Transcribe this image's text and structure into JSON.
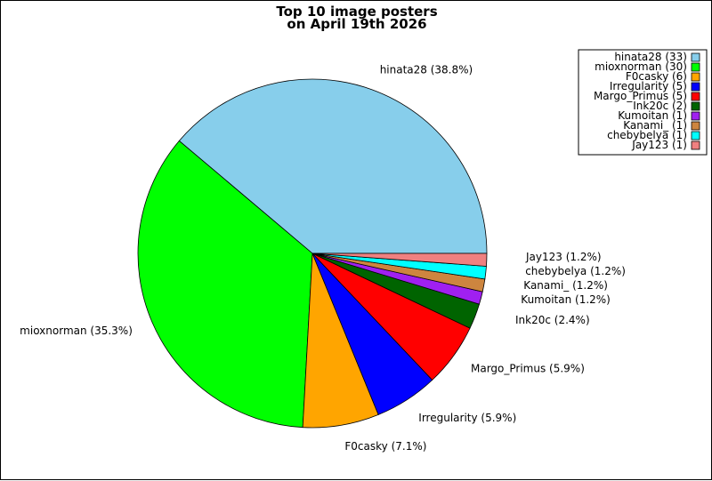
{
  "chart_data": {
    "type": "pie",
    "title_line1": "Top 10 image posters",
    "title_line2": "on April 19th 2026",
    "slices": [
      {
        "name": "hinata28",
        "value": 33,
        "legend": "hinata28 (33)",
        "label": "hinata28 (38.8%)",
        "color": "#87CEEB"
      },
      {
        "name": "mioxnorman",
        "value": 30,
        "legend": "mioxnorman (30)",
        "label": "mioxnorman (35.3%)",
        "color": "#00FF00"
      },
      {
        "name": "F0casky",
        "value": 6,
        "legend": "F0casky (6)",
        "label": "F0casky (7.1%)",
        "color": "#FFA500"
      },
      {
        "name": "Irregularity",
        "value": 5,
        "legend": "Irregularity (5)",
        "label": "Irregularity (5.9%)",
        "color": "#0000FF"
      },
      {
        "name": "Margo_Primus",
        "value": 5,
        "legend": "Margo_Primus (5)",
        "label": "Margo_Primus (5.9%)",
        "color": "#FF0000"
      },
      {
        "name": "Ink20c",
        "value": 2,
        "legend": "Ink20c (2)",
        "label": "Ink20c (2.4%)",
        "color": "#006400"
      },
      {
        "name": "Kumoitan",
        "value": 1,
        "legend": "Kumoitan (1)",
        "label": "Kumoitan (1.2%)",
        "color": "#A020F0"
      },
      {
        "name": "Kanami_",
        "value": 1,
        "legend": "Kanami_ (1)",
        "label": "Kanami_ (1.2%)",
        "color": "#CD853F"
      },
      {
        "name": "chebybelya",
        "value": 1,
        "legend": "chebybelya (1)",
        "label": "chebybelya (1.2%)",
        "color": "#00FFFF"
      },
      {
        "name": "Jay123",
        "value": 1,
        "legend": "Jay123 (1)",
        "label": "Jay123 (1.2%)",
        "color": "#F08080"
      }
    ],
    "legend_placement": "top-right",
    "grid": false
  }
}
